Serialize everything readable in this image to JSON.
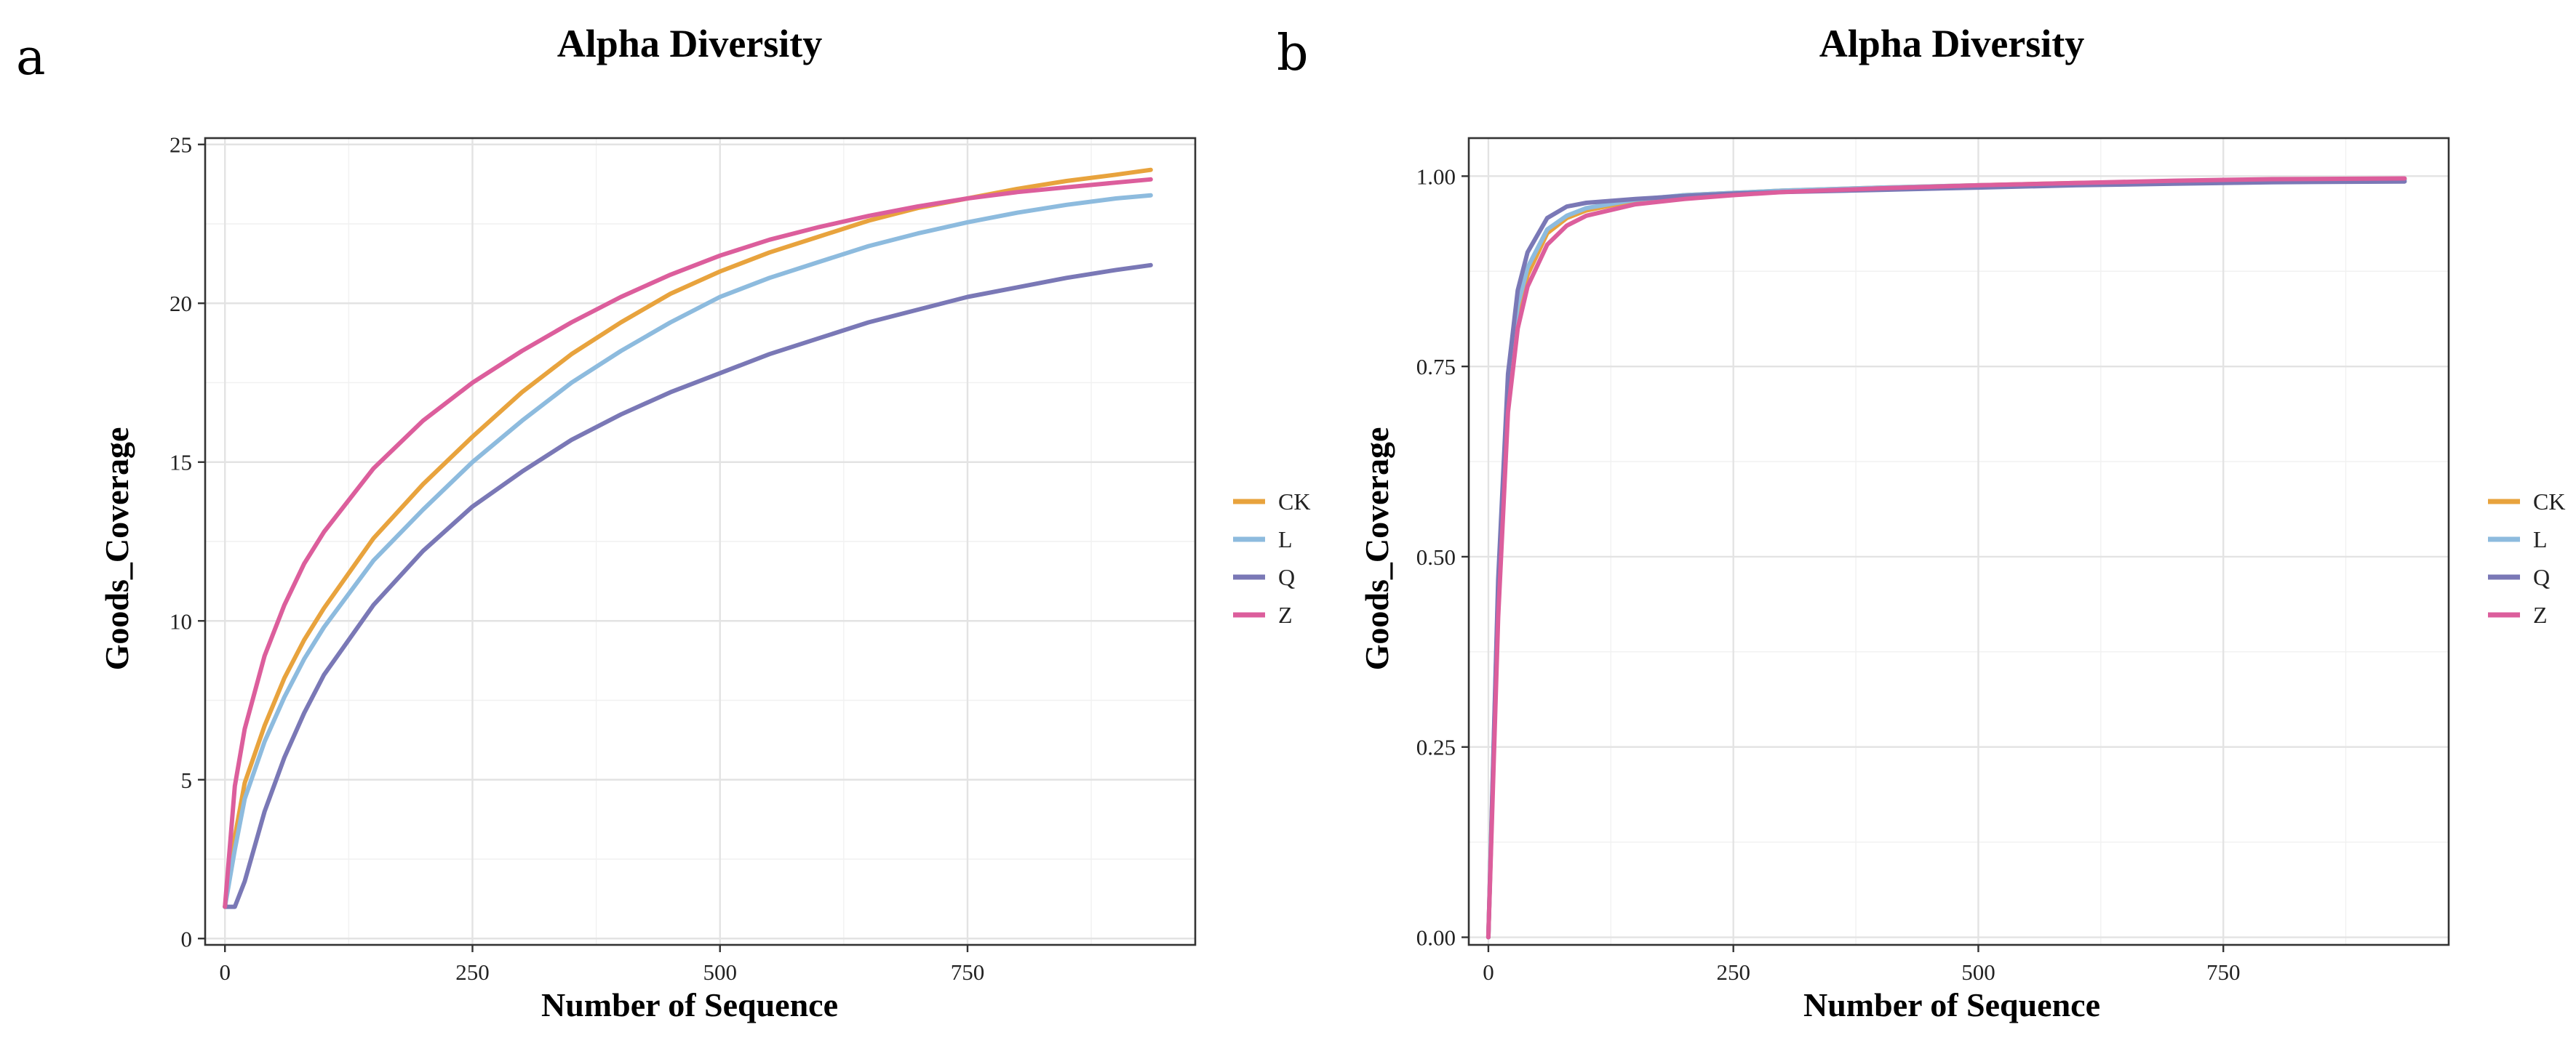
{
  "figure": {
    "panels": [
      {
        "letter": "a"
      },
      {
        "letter": "b"
      }
    ]
  },
  "chart_data": [
    {
      "type": "line",
      "panel": "a",
      "title": "Alpha Diversity",
      "xlabel": "Number of Sequence",
      "ylabel": "Goods_Coverage",
      "xlim": [
        -20,
        980
      ],
      "ylim": [
        -0.2,
        25.2
      ],
      "xticks": [
        0,
        250,
        500,
        750
      ],
      "xtick_labels": [
        "0",
        "250",
        "500",
        "750"
      ],
      "yticks": [
        0,
        5,
        10,
        15,
        20,
        25
      ],
      "ytick_labels": [
        "0",
        "5",
        "10",
        "15",
        "20",
        "25"
      ],
      "grid": true,
      "legend_position": "right",
      "series": [
        {
          "name": "CK",
          "color": "#E8A33D",
          "x": [
            0,
            10,
            20,
            40,
            60,
            80,
            100,
            150,
            200,
            250,
            300,
            350,
            400,
            450,
            500,
            550,
            600,
            650,
            700,
            750,
            800,
            850,
            900,
            935
          ],
          "y": [
            1,
            3.2,
            4.9,
            6.7,
            8.2,
            9.4,
            10.4,
            12.6,
            14.3,
            15.8,
            17.2,
            18.4,
            19.4,
            20.3,
            21.0,
            21.6,
            22.1,
            22.6,
            23.0,
            23.3,
            23.6,
            23.85,
            24.05,
            24.2
          ]
        },
        {
          "name": "L",
          "color": "#8DBBDE",
          "x": [
            0,
            10,
            20,
            40,
            60,
            80,
            100,
            150,
            200,
            250,
            300,
            350,
            400,
            450,
            500,
            550,
            600,
            650,
            700,
            750,
            800,
            850,
            900,
            935
          ],
          "y": [
            1,
            2.8,
            4.4,
            6.2,
            7.6,
            8.8,
            9.8,
            11.9,
            13.5,
            15.0,
            16.3,
            17.5,
            18.5,
            19.4,
            20.2,
            20.8,
            21.3,
            21.8,
            22.2,
            22.55,
            22.85,
            23.1,
            23.3,
            23.4
          ]
        },
        {
          "name": "Q",
          "color": "#7A78B6",
          "x": [
            0,
            10,
            20,
            40,
            60,
            80,
            100,
            150,
            200,
            250,
            300,
            350,
            400,
            450,
            500,
            550,
            600,
            650,
            700,
            750,
            800,
            850,
            900,
            935
          ],
          "y": [
            1,
            1,
            1.8,
            4.0,
            5.7,
            7.1,
            8.3,
            10.5,
            12.2,
            13.6,
            14.7,
            15.7,
            16.5,
            17.2,
            17.8,
            18.4,
            18.9,
            19.4,
            19.8,
            20.2,
            20.5,
            20.8,
            21.05,
            21.2
          ]
        },
        {
          "name": "Z",
          "color": "#DC5E9C",
          "x": [
            0,
            10,
            20,
            40,
            60,
            80,
            100,
            150,
            200,
            250,
            300,
            350,
            400,
            450,
            500,
            550,
            600,
            650,
            700,
            750,
            800,
            850,
            900,
            935
          ],
          "y": [
            1,
            4.8,
            6.6,
            8.9,
            10.5,
            11.8,
            12.8,
            14.8,
            16.3,
            17.5,
            18.5,
            19.4,
            20.2,
            20.9,
            21.5,
            22.0,
            22.4,
            22.75,
            23.05,
            23.3,
            23.5,
            23.65,
            23.8,
            23.9
          ]
        }
      ]
    },
    {
      "type": "line",
      "panel": "b",
      "title": "Alpha Diversity",
      "xlabel": "Number of Sequence",
      "ylabel": "Goods_Coverage",
      "xlim": [
        -20,
        980
      ],
      "ylim": [
        -0.01,
        1.05
      ],
      "xticks": [
        0,
        250,
        500,
        750
      ],
      "xtick_labels": [
        "0",
        "250",
        "500",
        "750"
      ],
      "yticks": [
        0,
        0.25,
        0.5,
        0.75,
        1.0
      ],
      "ytick_labels": [
        "0.00",
        "0.25",
        "0.50",
        "0.75",
        "1.00"
      ],
      "grid": true,
      "legend_position": "right",
      "series": [
        {
          "name": "CK",
          "color": "#E8A33D",
          "x": [
            0,
            10,
            20,
            30,
            40,
            60,
            80,
            100,
            150,
            200,
            250,
            300,
            400,
            500,
            600,
            700,
            800,
            935
          ],
          "y": [
            0,
            0.45,
            0.72,
            0.82,
            0.87,
            0.925,
            0.945,
            0.955,
            0.968,
            0.975,
            0.978,
            0.981,
            0.985,
            0.988,
            0.991,
            0.993,
            0.995,
            0.996
          ]
        },
        {
          "name": "L",
          "color": "#8DBBDE",
          "x": [
            0,
            10,
            20,
            30,
            40,
            60,
            80,
            100,
            150,
            200,
            250,
            300,
            400,
            500,
            600,
            700,
            800,
            935
          ],
          "y": [
            0,
            0.46,
            0.73,
            0.83,
            0.88,
            0.93,
            0.948,
            0.958,
            0.969,
            0.975,
            0.978,
            0.981,
            0.985,
            0.988,
            0.99,
            0.992,
            0.994,
            0.995
          ]
        },
        {
          "name": "Q",
          "color": "#7A78B6",
          "x": [
            0,
            10,
            20,
            30,
            40,
            60,
            80,
            100,
            150,
            200,
            250,
            300,
            400,
            500,
            600,
            700,
            800,
            935
          ],
          "y": [
            0,
            0.47,
            0.74,
            0.85,
            0.9,
            0.945,
            0.96,
            0.965,
            0.97,
            0.974,
            0.977,
            0.979,
            0.982,
            0.985,
            0.988,
            0.99,
            0.992,
            0.993
          ]
        },
        {
          "name": "Z",
          "color": "#DC5E9C",
          "x": [
            0,
            10,
            20,
            30,
            40,
            60,
            80,
            100,
            150,
            200,
            250,
            300,
            400,
            500,
            600,
            700,
            800,
            935
          ],
          "y": [
            0,
            0.42,
            0.69,
            0.8,
            0.855,
            0.91,
            0.935,
            0.948,
            0.963,
            0.97,
            0.975,
            0.979,
            0.984,
            0.988,
            0.991,
            0.994,
            0.996,
            0.997
          ]
        }
      ]
    }
  ]
}
